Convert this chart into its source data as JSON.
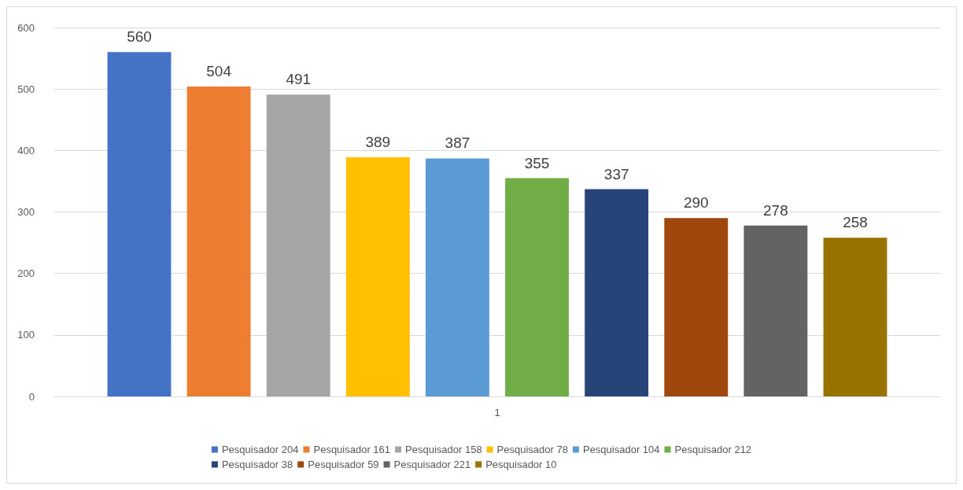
{
  "chart_data": {
    "type": "bar",
    "categories": [
      "1"
    ],
    "series": [
      {
        "name": "Pesquisador 204",
        "color": "#4472c4",
        "values": [
          560
        ]
      },
      {
        "name": "Pesquisador 161",
        "color": "#ed7d31",
        "values": [
          504
        ]
      },
      {
        "name": "Pesquisador 158",
        "color": "#a5a5a5",
        "values": [
          491
        ]
      },
      {
        "name": "Pesquisador 78",
        "color": "#ffc000",
        "values": [
          389
        ]
      },
      {
        "name": "Pesquisador 104",
        "color": "#5b9bd5",
        "values": [
          387
        ]
      },
      {
        "name": "Pesquisador 212",
        "color": "#70ad47",
        "values": [
          355
        ]
      },
      {
        "name": "Pesquisador 38",
        "color": "#264478",
        "values": [
          337
        ]
      },
      {
        "name": "Pesquisador 59",
        "color": "#9e480e",
        "values": [
          290
        ]
      },
      {
        "name": "Pesquisador 221",
        "color": "#636363",
        "values": [
          278
        ]
      },
      {
        "name": "Pesquisador 10",
        "color": "#997300",
        "values": [
          258
        ]
      }
    ],
    "ylim": [
      0,
      600
    ],
    "yticks": [
      0,
      100,
      200,
      300,
      400,
      500,
      600
    ],
    "grid": "y",
    "legend": "bottom",
    "data_labels": true
  }
}
